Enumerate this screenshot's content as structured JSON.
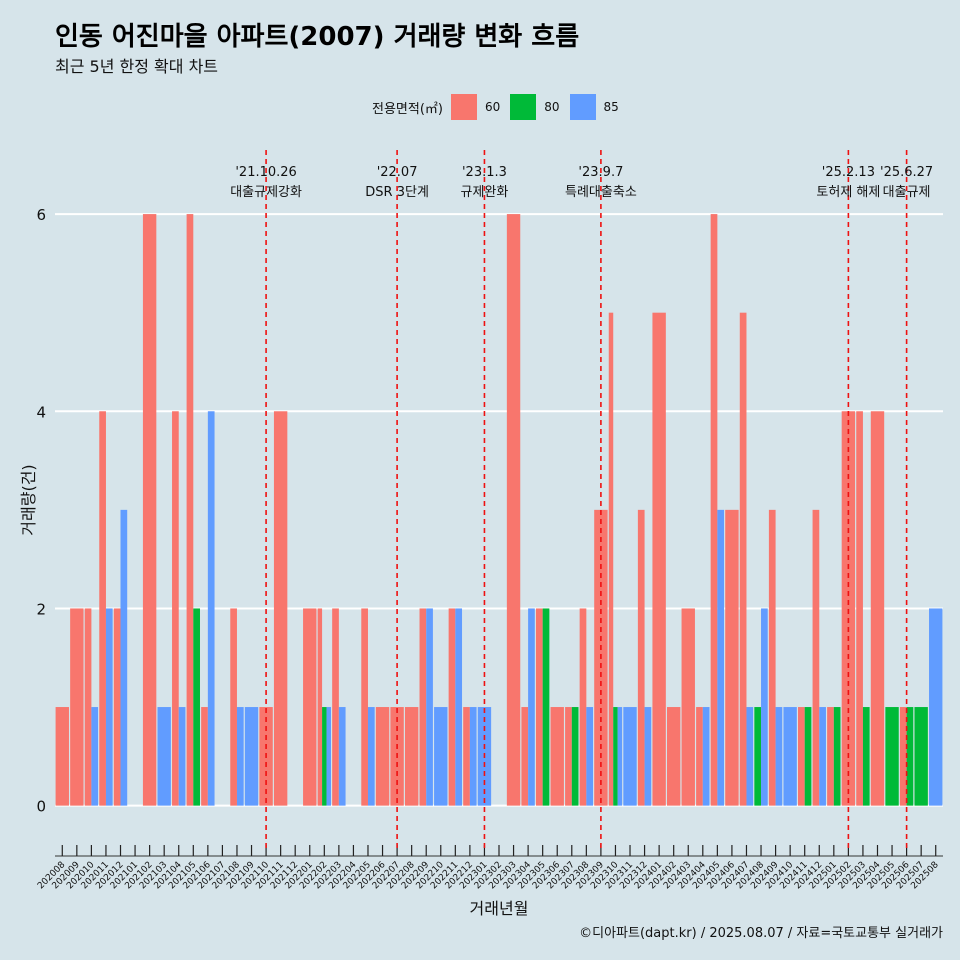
{
  "header": {
    "title": "인동 어진마을 아파트(2007) 거래량 변화 흐름",
    "subtitle": "최근 5년 한정 확대 차트"
  },
  "legend": {
    "title": "전용면적(㎡)",
    "items": [
      {
        "label": "60",
        "color": "#f8766d"
      },
      {
        "label": "80",
        "color": "#00ba38"
      },
      {
        "label": "85",
        "color": "#619cff"
      }
    ]
  },
  "caption": "©디아파트(dapt.kr) / 2025.08.07 / 자료=국토교통부 실거래가",
  "chart_data": {
    "type": "bar",
    "xlabel": "거래년월",
    "ylabel": "거래량(건)",
    "ylim": [
      -0.45,
      6.65
    ],
    "yticks": [
      0,
      2,
      4,
      6
    ],
    "grid": true,
    "legend_position": "top",
    "categories": [
      "202008",
      "202009",
      "202010",
      "202011",
      "202012",
      "202101",
      "202102",
      "202103",
      "202104",
      "202105",
      "202106",
      "202107",
      "202108",
      "202109",
      "202110",
      "202111",
      "202112",
      "202201",
      "202202",
      "202203",
      "202204",
      "202205",
      "202206",
      "202207",
      "202208",
      "202209",
      "202210",
      "202211",
      "202212",
      "202301",
      "202302",
      "202303",
      "202304",
      "202305",
      "202306",
      "202307",
      "202308",
      "202309",
      "202310",
      "202311",
      "202312",
      "202401",
      "202402",
      "202403",
      "202404",
      "202405",
      "202406",
      "202407",
      "202408",
      "202409",
      "202410",
      "202411",
      "202412",
      "202501",
      "202502",
      "202503",
      "202504",
      "202505",
      "202506",
      "202507",
      "202508"
    ],
    "series": [
      {
        "name": "60",
        "color": "#f8766d",
        "values": [
          1,
          2,
          2,
          4,
          2,
          0,
          6,
          0,
          4,
          6,
          1,
          0,
          2,
          0,
          1,
          4,
          0,
          2,
          2,
          2,
          0,
          2,
          1,
          1,
          1,
          2,
          0,
          2,
          1,
          0,
          0,
          6,
          1,
          2,
          1,
          1,
          2,
          3,
          5,
          0,
          3,
          5,
          1,
          2,
          1,
          6,
          3,
          5,
          0,
          3,
          0,
          1,
          3,
          1,
          4,
          4,
          4,
          0,
          1,
          0,
          0
        ]
      },
      {
        "name": "80",
        "color": "#00ba38",
        "values": [
          0,
          0,
          0,
          0,
          0,
          0,
          0,
          0,
          0,
          2,
          0,
          0,
          0,
          0,
          0,
          0,
          0,
          0,
          1,
          0,
          0,
          0,
          0,
          0,
          0,
          0,
          0,
          0,
          0,
          0,
          0,
          0,
          0,
          2,
          0,
          1,
          0,
          0,
          1,
          0,
          0,
          0,
          0,
          0,
          0,
          0,
          0,
          0,
          1,
          0,
          0,
          1,
          0,
          1,
          0,
          1,
          0,
          1,
          1,
          1,
          0
        ]
      },
      {
        "name": "85",
        "color": "#619cff",
        "values": [
          0,
          0,
          1,
          2,
          3,
          0,
          0,
          1,
          1,
          0,
          4,
          0,
          1,
          1,
          0,
          0,
          0,
          0,
          1,
          1,
          0,
          1,
          0,
          0,
          0,
          2,
          1,
          2,
          1,
          1,
          0,
          0,
          2,
          0,
          0,
          0,
          1,
          0,
          1,
          1,
          1,
          0,
          0,
          0,
          1,
          3,
          0,
          1,
          2,
          1,
          1,
          0,
          1,
          0,
          0,
          0,
          0,
          0,
          0,
          0,
          2
        ]
      }
    ],
    "annotations": [
      {
        "date": "'21.10.26",
        "label": "대출규제강화",
        "category": "202110"
      },
      {
        "date": "'22.07",
        "label": "DSR 3단계",
        "category": "202207"
      },
      {
        "date": "'23.1.3",
        "label": "규제완화",
        "category": "202301"
      },
      {
        "date": "'23.9.7",
        "label": "특례대출축소",
        "category": "202309"
      },
      {
        "date": "'25.2.13",
        "label": "토허제 해제",
        "category": "202502"
      },
      {
        "date": "'25.6.27",
        "label": "대출규제",
        "category": "202506"
      }
    ]
  }
}
